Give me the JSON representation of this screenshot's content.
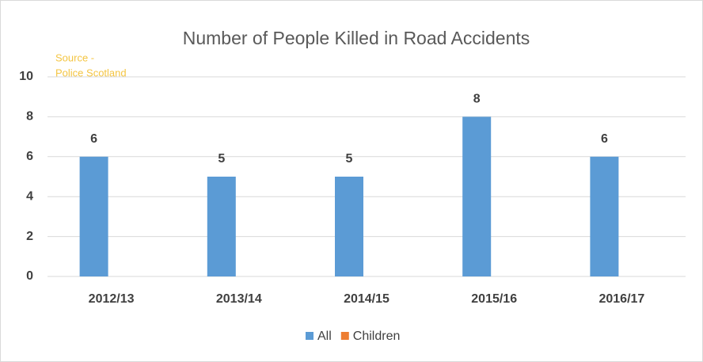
{
  "chart_data": {
    "type": "bar",
    "title": "Number of People Killed in Road Accidents",
    "annotation": [
      "Source -",
      "Police Scotland"
    ],
    "categories": [
      "2012/13",
      "2013/14",
      "2014/15",
      "2015/16",
      "2016/17"
    ],
    "series": [
      {
        "name": "All",
        "color": "#5b9bd5",
        "values": [
          6,
          5,
          5,
          8,
          6
        ],
        "show_labels": true
      },
      {
        "name": "Children",
        "color": "#ed7d31",
        "values": [
          0,
          0,
          0,
          0,
          0
        ],
        "show_labels": false
      }
    ],
    "ylim": [
      0,
      10
    ],
    "yticks": [
      0,
      2,
      4,
      6,
      8,
      10
    ],
    "grid": true,
    "legend": "bottom"
  }
}
